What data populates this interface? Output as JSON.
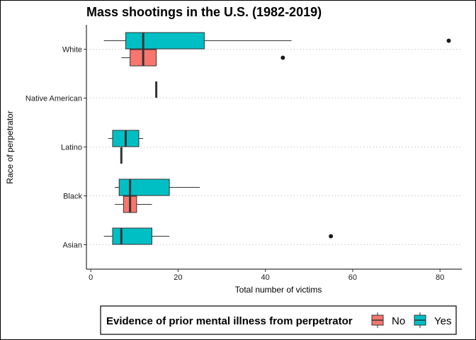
{
  "chart_data": {
    "type": "boxplot",
    "orientation": "horizontal",
    "title": "Mass shootings in the U.S. (1982-2019)",
    "xlabel": "Total number of victims",
    "ylabel": "Race of perpetrator",
    "xlim": [
      -1,
      85
    ],
    "xticks": [
      0,
      20,
      40,
      60,
      80
    ],
    "categories": [
      "White",
      "Native American",
      "Latino",
      "Black",
      "Asian"
    ],
    "grid": "dotted horizontal gridlines at categories",
    "legend": {
      "title": "Evidence of prior mental illness from perpetrator",
      "placement": "bottom",
      "entries": [
        {
          "name": "No",
          "color": "#F8766D"
        },
        {
          "name": "Yes",
          "color": "#00BFC4"
        }
      ]
    },
    "series": [
      {
        "name": "No",
        "color": "#F8766D",
        "boxes": [
          {
            "category": "White",
            "min": 7,
            "q1": 9,
            "median": 12,
            "q3": 15,
            "max": 15,
            "outliers": [
              44
            ]
          },
          {
            "category": "Latino",
            "min": 7,
            "q1": 7,
            "median": 7,
            "q3": 7,
            "max": 7,
            "outliers": []
          },
          {
            "category": "Black",
            "min": 5.5,
            "q1": 7.5,
            "median": 9,
            "q3": 10.5,
            "max": 14,
            "outliers": []
          }
        ]
      },
      {
        "name": "Yes",
        "color": "#00BFC4",
        "boxes": [
          {
            "category": "White",
            "min": 3,
            "q1": 8,
            "median": 12,
            "q3": 26,
            "max": 46,
            "outliers": [
              82
            ]
          },
          {
            "category": "Native American",
            "min": 15,
            "q1": 15,
            "median": 15,
            "q3": 15,
            "max": 15,
            "outliers": []
          },
          {
            "category": "Latino",
            "min": 4,
            "q1": 5,
            "median": 8,
            "q3": 11,
            "max": 12,
            "outliers": []
          },
          {
            "category": "Black",
            "min": 5.5,
            "q1": 6.5,
            "median": 9,
            "q3": 18,
            "max": 25,
            "outliers": []
          },
          {
            "category": "Asian",
            "min": 3,
            "q1": 5,
            "median": 7,
            "q3": 14,
            "max": 18,
            "outliers": [
              55
            ]
          }
        ]
      }
    ]
  }
}
